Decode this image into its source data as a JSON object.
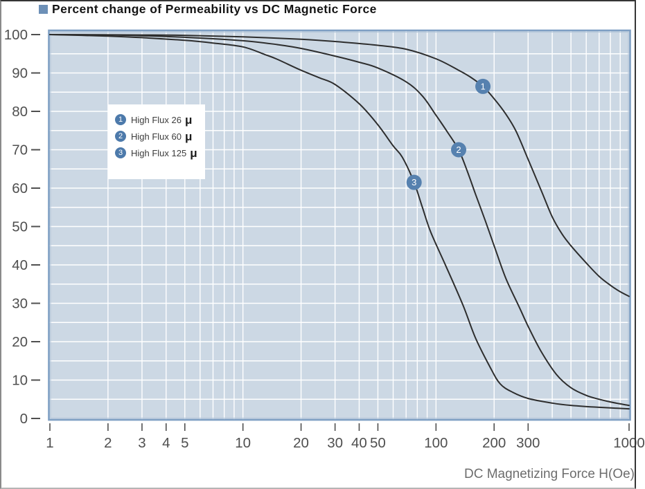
{
  "chart_data": {
    "type": "line",
    "title": "Percent change of Permeability vs DC Magnetic Force",
    "xlabel": "DC Magnetizing Force H(Oe)",
    "ylabel": "",
    "x_scale": "log",
    "xlim": [
      1,
      1000
    ],
    "ylim": [
      0,
      100
    ],
    "x_ticks": [
      1,
      2,
      3,
      4,
      5,
      10,
      20,
      30,
      40,
      50,
      100,
      200,
      300,
      1000
    ],
    "y_ticks": [
      100,
      90,
      80,
      70,
      60,
      50,
      40,
      30,
      20,
      10,
      0
    ],
    "grid": {
      "shown": true,
      "y_step": 5,
      "x_minor": "log-decade-integers"
    },
    "legend": {
      "position": "upper-left-inside",
      "items": [
        {
          "number": "1",
          "label": "High Flux 26",
          "suffix": "μ"
        },
        {
          "number": "2",
          "label": "High Flux 60",
          "suffix": "μ"
        },
        {
          "number": "3",
          "label": "High Flux 125",
          "suffix": "μ"
        }
      ]
    },
    "series": [
      {
        "name": "High Flux 26 μ",
        "marker_number": "1",
        "marker_at": {
          "x": 175,
          "y": 86.5
        },
        "points": [
          [
            1,
            100
          ],
          [
            3,
            99.9
          ],
          [
            5,
            99.8
          ],
          [
            10,
            99.4
          ],
          [
            20,
            98.8
          ],
          [
            30,
            98.2
          ],
          [
            50,
            97.2
          ],
          [
            70,
            96.2
          ],
          [
            100,
            93.7
          ],
          [
            130,
            90.8
          ],
          [
            150,
            89
          ],
          [
            175,
            86.5
          ],
          [
            200,
            83.3
          ],
          [
            230,
            79.3
          ],
          [
            260,
            74.8
          ],
          [
            300,
            67.5
          ],
          [
            350,
            59.5
          ],
          [
            400,
            52.5
          ],
          [
            450,
            48
          ],
          [
            500,
            45
          ],
          [
            600,
            40.5
          ],
          [
            700,
            37
          ],
          [
            800,
            34.7
          ],
          [
            900,
            33
          ],
          [
            1000,
            31.8
          ]
        ]
      },
      {
        "name": "High Flux 60 μ",
        "marker_number": "2",
        "marker_at": {
          "x": 131,
          "y": 70
        },
        "points": [
          [
            1,
            100
          ],
          [
            2,
            99.9
          ],
          [
            3,
            99.7
          ],
          [
            5,
            99.3
          ],
          [
            10,
            98.4
          ],
          [
            15,
            97.4
          ],
          [
            20,
            96.4
          ],
          [
            30,
            94.4
          ],
          [
            40,
            92.8
          ],
          [
            50,
            91.3
          ],
          [
            70,
            87.7
          ],
          [
            85,
            84
          ],
          [
            100,
            79
          ],
          [
            115,
            74.5
          ],
          [
            131,
            70
          ],
          [
            145,
            64.5
          ],
          [
            160,
            58.5
          ],
          [
            180,
            51.5
          ],
          [
            200,
            45
          ],
          [
            230,
            36.5
          ],
          [
            270,
            29
          ],
          [
            300,
            24
          ],
          [
            350,
            17.5
          ],
          [
            420,
            11.5
          ],
          [
            500,
            8
          ],
          [
            600,
            6
          ],
          [
            700,
            5
          ],
          [
            800,
            4.3
          ],
          [
            900,
            3.8
          ],
          [
            1000,
            3.4
          ]
        ]
      },
      {
        "name": "High Flux 125 μ",
        "marker_number": "3",
        "marker_at": {
          "x": 77,
          "y": 61.5
        },
        "points": [
          [
            1,
            100
          ],
          [
            2,
            99.6
          ],
          [
            3,
            99.2
          ],
          [
            5,
            98.5
          ],
          [
            7,
            97.8
          ],
          [
            10,
            96.8
          ],
          [
            13,
            94.8
          ],
          [
            15,
            93.6
          ],
          [
            20,
            90.7
          ],
          [
            25,
            88.7
          ],
          [
            30,
            87
          ],
          [
            40,
            82
          ],
          [
            50,
            76.5
          ],
          [
            60,
            71
          ],
          [
            67,
            68
          ],
          [
            77,
            61.5
          ],
          [
            85,
            55
          ],
          [
            94,
            48.5
          ],
          [
            113,
            39.5
          ],
          [
            138,
            29.5
          ],
          [
            160,
            21
          ],
          [
            190,
            13.5
          ],
          [
            215,
            9
          ],
          [
            250,
            6.8
          ],
          [
            300,
            5.2
          ],
          [
            400,
            4
          ],
          [
            500,
            3.4
          ],
          [
            700,
            2.9
          ],
          [
            1000,
            2.5
          ]
        ]
      }
    ],
    "colors": {
      "plot_bg": "#ccd8e4",
      "grid": "#ffffff",
      "plot_border": "#7e9fc3",
      "plot_border_inner": "#b7c9db",
      "curve": "#2d2d2d",
      "marker_fill": "#5681af",
      "marker_text": "#ffffff",
      "tick_text": "#4f4f4f",
      "axis_title": "#6d6d6d",
      "title_bullet": "#6d90b7"
    }
  }
}
